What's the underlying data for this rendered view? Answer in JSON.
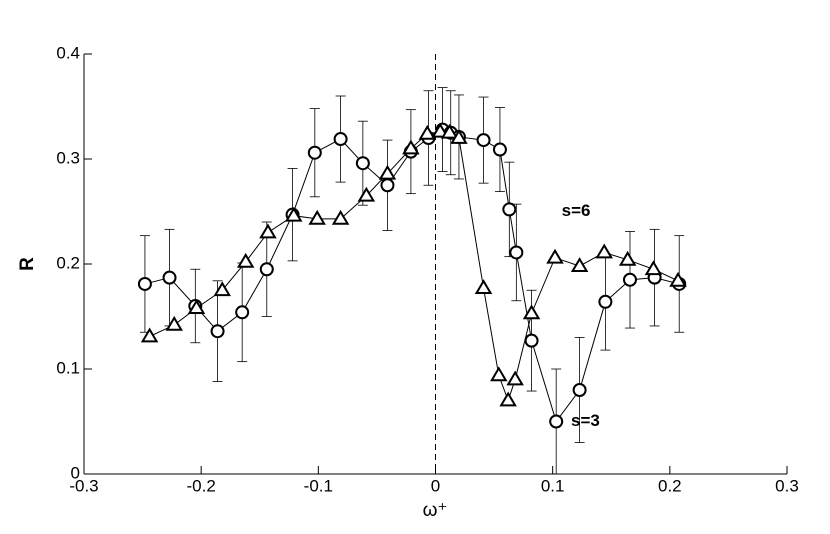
{
  "chart_data": {
    "type": "scatter-line",
    "xlabel": "ω⁺",
    "ylabel": "R",
    "xlim": [
      -0.3,
      0.3
    ],
    "xticks": [
      -0.3,
      -0.2,
      -0.1,
      0,
      0.1,
      0.2,
      0.3
    ],
    "ylim": [
      0,
      0.4
    ],
    "yticks": [
      0,
      0.1,
      0.2,
      0.3,
      0.4
    ],
    "reference_x": 0,
    "annotations": [
      {
        "text": "s=6",
        "x": 0.12,
        "y": 0.25
      },
      {
        "text": "s=3",
        "x": 0.128,
        "y": 0.05
      }
    ],
    "series": [
      {
        "marker": "circle",
        "color": "#000000",
        "x": [
          -0.248,
          -0.227,
          -0.205,
          -0.186,
          -0.165,
          -0.144,
          -0.122,
          -0.103,
          -0.081,
          -0.062,
          -0.041,
          -0.021,
          -0.006,
          0.006,
          0.013,
          0.02,
          0.041,
          0.055,
          0.063,
          0.069,
          0.082,
          0.103,
          0.123,
          0.145,
          0.166,
          0.187,
          0.208
        ],
        "values": [
          0.181,
          0.187,
          0.16,
          0.136,
          0.154,
          0.195,
          0.247,
          0.306,
          0.319,
          0.296,
          0.275,
          0.307,
          0.32,
          0.328,
          0.325,
          0.321,
          0.318,
          0.309,
          0.252,
          0.211,
          0.127,
          0.05,
          0.08,
          0.164,
          0.185,
          0.187,
          0.181
        ],
        "errors": [
          0.046,
          0.046,
          0.035,
          0.048,
          0.047,
          0.045,
          0.044,
          0.042,
          0.041,
          0.04,
          0.043,
          0.04,
          0.045,
          0.04,
          0.04,
          0.04,
          0.041,
          0.04,
          0.045,
          0.046,
          0.048,
          0.05,
          0.05,
          0.046,
          0.046,
          0.046,
          0.046
        ]
      },
      {
        "marker": "triangle",
        "color": "#000000",
        "x": [
          -0.244,
          -0.223,
          -0.204,
          -0.182,
          -0.162,
          -0.143,
          -0.121,
          -0.101,
          -0.081,
          -0.059,
          -0.041,
          -0.021,
          -0.007,
          0.004,
          0.012,
          0.02,
          0.041,
          0.054,
          0.062,
          0.068,
          0.082,
          0.102,
          0.123,
          0.144,
          0.164,
          0.186,
          0.207
        ],
        "values": [
          0.131,
          0.142,
          0.158,
          0.175,
          0.202,
          0.23,
          0.246,
          0.243,
          0.243,
          0.265,
          0.286,
          0.31,
          0.324,
          0.326,
          0.325,
          0.32,
          0.177,
          0.094,
          0.07,
          0.09,
          0.153,
          0.206,
          0.198,
          0.211,
          0.204,
          0.195,
          0.184
        ]
      }
    ]
  }
}
